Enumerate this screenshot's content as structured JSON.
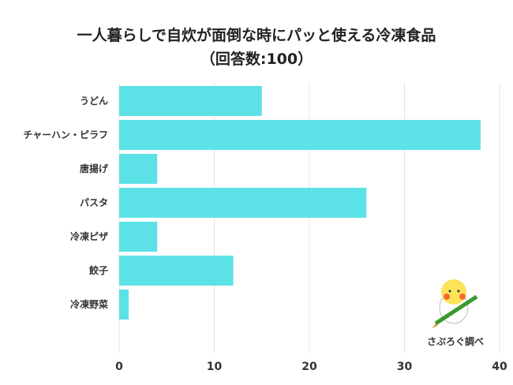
{
  "chart_data": {
    "type": "bar",
    "orientation": "horizontal",
    "title": "一人暮らしで自炊が面倒な時にパッと使える冷凍食品",
    "subtitle": "（回答数:100）",
    "categories": [
      "うどん",
      "チャーハン・ピラフ",
      "唐揚げ",
      "パスタ",
      "冷凍ピザ",
      "餃子",
      "冷凍野菜"
    ],
    "values": [
      15,
      38,
      4,
      26,
      4,
      12,
      1
    ],
    "xlim": [
      0,
      40
    ],
    "xticks": [
      0,
      10,
      20,
      30,
      40
    ],
    "grid": true,
    "bar_color": "#5ce1e6",
    "xlabel": "",
    "ylabel": ""
  },
  "logo": {
    "text": "さぷろぐ調べ"
  }
}
